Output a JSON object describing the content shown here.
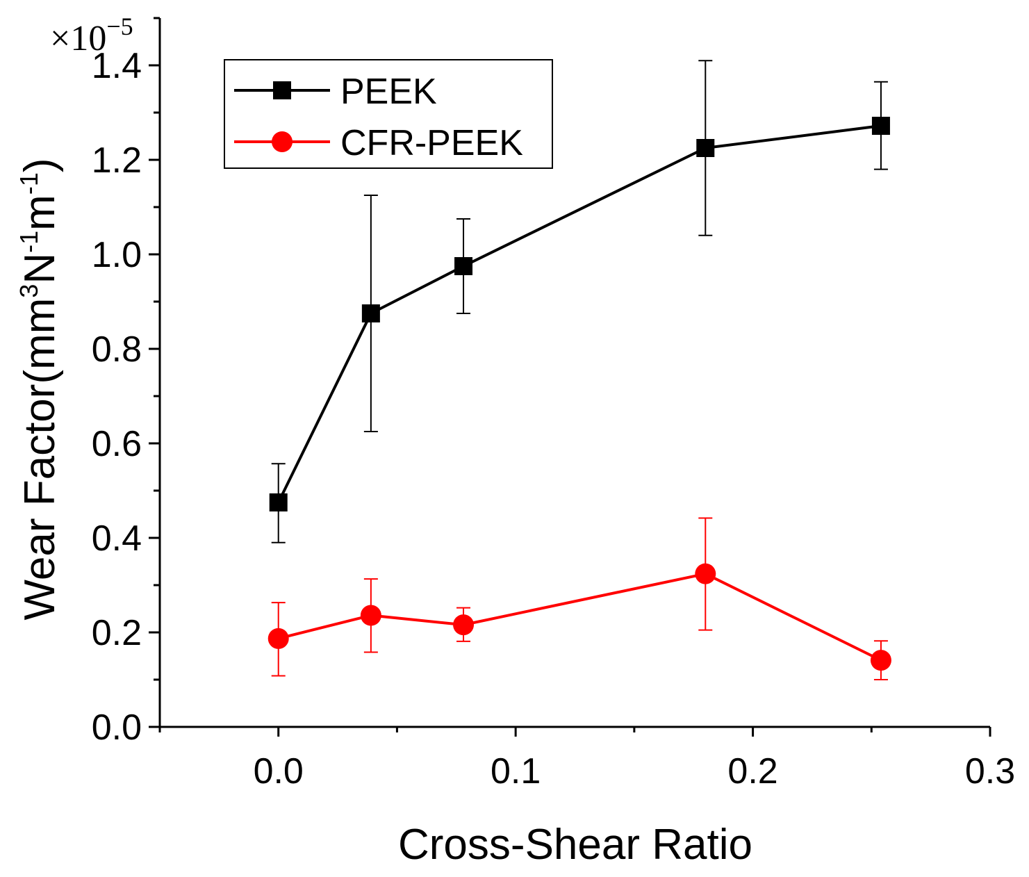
{
  "chart_data": {
    "type": "line",
    "xlabel": "Cross-Shear Ratio",
    "ylabel": {
      "prefix": "Wear Factor(mm",
      "sup1": "3",
      "mid1": "N",
      "sup2": "-1",
      "mid2": "m",
      "sup3": "-1",
      "suffix": ")"
    },
    "multiplier": {
      "base": "×10",
      "exponent": "−5"
    },
    "xlim": [
      -0.05,
      0.3
    ],
    "ylim": [
      0,
      1.5
    ],
    "x_ticks": [
      "0.0",
      "0.1",
      "0.2",
      "0.3"
    ],
    "x_tick_values": [
      0.0,
      0.1,
      0.2,
      0.3
    ],
    "y_ticks": [
      "0.0",
      "0.2",
      "0.4",
      "0.6",
      "0.8",
      "1.0",
      "1.2",
      "1.4"
    ],
    "y_tick_values": [
      0.0,
      0.2,
      0.4,
      0.6,
      0.8,
      1.0,
      1.2,
      1.4
    ],
    "legend_position": "top-left",
    "grid": false,
    "series": [
      {
        "name": "PEEK",
        "color": "#000000",
        "marker": "square",
        "x": [
          0.0,
          0.039,
          0.078,
          0.18,
          0.254
        ],
        "y": [
          0.475,
          0.875,
          0.975,
          1.225,
          1.272
        ],
        "err_low": [
          0.39,
          0.625,
          0.875,
          1.04,
          1.18
        ],
        "err_high": [
          0.557,
          1.125,
          1.075,
          1.41,
          1.365
        ]
      },
      {
        "name": "CFR-PEEK",
        "color": "#ff0000",
        "marker": "circle",
        "x": [
          0.0,
          0.039,
          0.078,
          0.18,
          0.254
        ],
        "y": [
          0.187,
          0.236,
          0.216,
          0.324,
          0.141
        ],
        "err_low": [
          0.108,
          0.158,
          0.181,
          0.205,
          0.1
        ],
        "err_high": [
          0.263,
          0.313,
          0.252,
          0.442,
          0.182
        ]
      }
    ]
  }
}
